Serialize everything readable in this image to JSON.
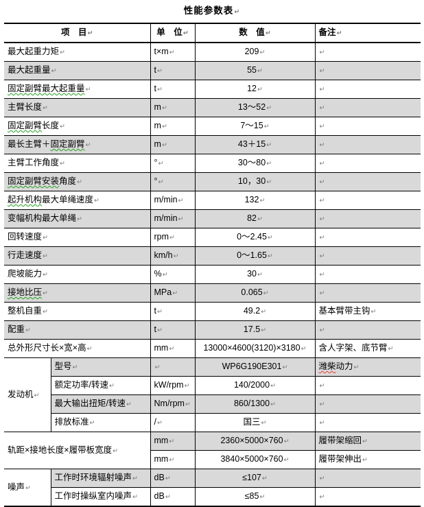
{
  "title": {
    "text": "性能参数表",
    "mark": "↵"
  },
  "marks": {
    "cell": "↵",
    "row": "¤"
  },
  "colors": {
    "shaded_row": "#d9d9d9",
    "border": "#000000",
    "squiggle_green": "#1fa11f",
    "squiggle_red": "#f03a2e",
    "paragraph_mark": "#7a7a7a"
  },
  "table": {
    "headers": [
      {
        "label": "项　目"
      },
      {
        "label": "单　位"
      },
      {
        "label": "数　值"
      },
      {
        "label": "备注"
      }
    ],
    "sections": [
      {
        "type": "rows",
        "rows": [
          {
            "item": "最大起重力矩",
            "unit": "t×m",
            "value": "209",
            "remark": "",
            "shaded": false
          },
          {
            "item": "最大起重量",
            "unit": "t",
            "value": "55",
            "remark": "",
            "shaded": true
          },
          {
            "item": "固定副臂最大起重量",
            "unit": "t",
            "value": "12",
            "remark": "",
            "shaded": false,
            "item_squiggle": {
              "text": "固定副臂最大起重量",
              "color": "green"
            }
          },
          {
            "item": "主臂长度",
            "unit": "m",
            "value": "13～52",
            "remark": "",
            "shaded": true
          },
          {
            "item": "固定副臂长度",
            "unit": "m",
            "value": "7～15",
            "remark": "",
            "shaded": false,
            "item_squiggle": {
              "text": "固定副臂",
              "color": "green"
            }
          },
          {
            "item": "最长主臂＋固定副臂",
            "unit": "m",
            "value": "43＋15",
            "remark": "",
            "shaded": true,
            "item_squiggle": {
              "text": "固定副臂",
              "color": "green"
            }
          },
          {
            "item": "主臂工作角度",
            "unit": "°",
            "value": "30～80",
            "remark": "",
            "shaded": false
          },
          {
            "item": "固定副臂安装角度",
            "unit": "°",
            "value": "10，30",
            "remark": "",
            "shaded": true,
            "item_squiggle": {
              "text": "固定副臂安装",
              "color": "green"
            }
          },
          {
            "item": "起升机构最大单绳速度",
            "unit": "m/min",
            "value": "132",
            "remark": "",
            "shaded": false,
            "item_squiggle": {
              "text": "起升机构",
              "color": "green"
            }
          },
          {
            "item": "变幅机构最大单绳",
            "unit": "m/min",
            "value": "82",
            "remark": "",
            "shaded": true
          },
          {
            "item": "回转速度",
            "unit": "rpm",
            "value": "0～2.45",
            "remark": "",
            "shaded": false
          },
          {
            "item": "行走速度",
            "unit": "km/h",
            "value": "0～1.65",
            "remark": "",
            "shaded": true
          },
          {
            "item": "爬坡能力",
            "unit": "%",
            "value": "30",
            "remark": "",
            "shaded": false
          },
          {
            "item": "接地比压",
            "unit": "MPa",
            "value": "0.065",
            "remark": "",
            "shaded": true,
            "item_squiggle": {
              "text": "接地比压",
              "color": "green"
            }
          },
          {
            "item": "整机自重",
            "unit": "t",
            "value": "49.2",
            "remark": "基本臂带主钩",
            "shaded": false
          },
          {
            "item": "配重",
            "unit": "t",
            "value": "17.5",
            "remark": "",
            "shaded": true
          },
          {
            "item": "总外形尺寸长×宽×高",
            "unit": "mm",
            "value": "13000×4600(3120)×3180",
            "remark": "含人字架、底节臂",
            "shaded": false
          }
        ]
      },
      {
        "type": "group",
        "label": "发动机",
        "split": true,
        "rows": [
          {
            "item": "型号",
            "unit": "",
            "value": "WP6G190E301",
            "remark": "潍柴动力",
            "shaded": true,
            "remark_squiggle": {
              "text": "潍柴",
              "color": "red"
            }
          },
          {
            "item": "额定功率/转速",
            "unit": "kW/rpm",
            "value": "140/2000",
            "remark": "",
            "shaded": false
          },
          {
            "item": "最大输出扭矩/转速",
            "unit": "Nm/rpm",
            "value": "860/1300",
            "remark": "",
            "shaded": true
          },
          {
            "item": "排放标准",
            "unit": "/",
            "value": "国三",
            "remark": "",
            "shaded": false
          }
        ]
      },
      {
        "type": "group",
        "label": "轨距×接地长度×履带板宽度",
        "split": false,
        "rows": [
          {
            "item": "",
            "unit": "mm",
            "value": "2360×5000×760",
            "remark": "履带架缩回",
            "shaded": true
          },
          {
            "item": "",
            "unit": "mm",
            "value": "3840×5000×760",
            "remark": "履带架伸出",
            "shaded": false
          }
        ]
      },
      {
        "type": "group",
        "label": "噪声",
        "split": true,
        "rows": [
          {
            "item": "工作时环境辐射噪声",
            "unit": "dB",
            "value": "≤107",
            "remark": "",
            "shaded": true
          },
          {
            "item": "工作时操纵室内噪声",
            "unit": "dB",
            "value": "≤85",
            "remark": "",
            "shaded": false
          }
        ]
      }
    ]
  }
}
